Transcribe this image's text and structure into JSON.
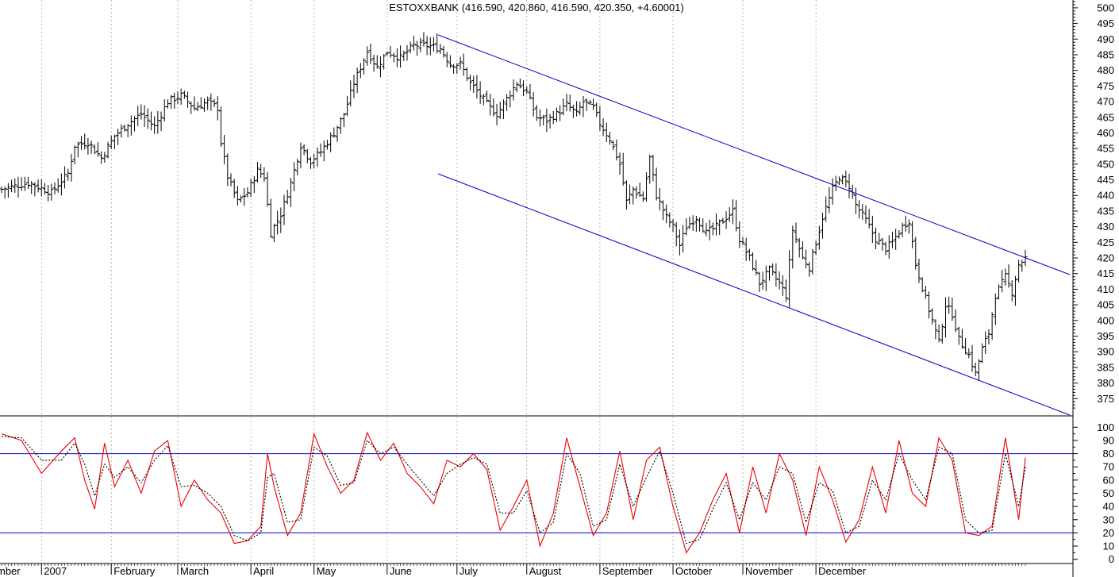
{
  "chart_data": [
    {
      "type": "ohlc",
      "title": "ESTOXXBANK (416.590, 420.860, 416.590, 420.350, +4.60001)",
      "ylim": [
        370,
        502
      ],
      "y_ticks": [
        375,
        380,
        385,
        390,
        395,
        400,
        405,
        410,
        415,
        420,
        425,
        430,
        435,
        440,
        445,
        450,
        455,
        460,
        465,
        470,
        475,
        480,
        485,
        490,
        495,
        500
      ],
      "x_labels": [
        "mber",
        "2007",
        "February",
        "March",
        "April",
        "May",
        "June",
        "July",
        "August",
        "September",
        "October",
        "November",
        "December"
      ],
      "grid": "vertical dotted at month starts",
      "anchors": [
        [
          0,
          442
        ],
        [
          8,
          444
        ],
        [
          15,
          441
        ],
        [
          20,
          447
        ],
        [
          22,
          456
        ],
        [
          26,
          457
        ],
        [
          30,
          452
        ],
        [
          34,
          459
        ],
        [
          38,
          463
        ],
        [
          42,
          466
        ],
        [
          46,
          462
        ],
        [
          50,
          470
        ],
        [
          54,
          472
        ],
        [
          58,
          468
        ],
        [
          62,
          470
        ],
        [
          65,
          468
        ],
        [
          66,
          457
        ],
        [
          68,
          446
        ],
        [
          71,
          438
        ],
        [
          74,
          441
        ],
        [
          77,
          448
        ],
        [
          79,
          446
        ],
        [
          81,
          428
        ],
        [
          84,
          434
        ],
        [
          87,
          444
        ],
        [
          90,
          456
        ],
        [
          93,
          451
        ],
        [
          96,
          454
        ],
        [
          100,
          460
        ],
        [
          103,
          466
        ],
        [
          106,
          476
        ],
        [
          110,
          486
        ],
        [
          113,
          481
        ],
        [
          116,
          486
        ],
        [
          120,
          484
        ],
        [
          124,
          488
        ],
        [
          128,
          488
        ],
        [
          132,
          487
        ],
        [
          135,
          482
        ],
        [
          138,
          482
        ],
        [
          141,
          476
        ],
        [
          144,
          472
        ],
        [
          147,
          468
        ],
        [
          149,
          466
        ],
        [
          152,
          471
        ],
        [
          155,
          476
        ],
        [
          158,
          473
        ],
        [
          161,
          465
        ],
        [
          164,
          464
        ],
        [
          167,
          466
        ],
        [
          170,
          469
        ],
        [
          173,
          466
        ],
        [
          175,
          470
        ],
        [
          178,
          468
        ],
        [
          180,
          463
        ],
        [
          183,
          458
        ],
        [
          186,
          450
        ],
        [
          188,
          438
        ],
        [
          190,
          442
        ],
        [
          193,
          439
        ],
        [
          195,
          452
        ],
        [
          197,
          440
        ],
        [
          200,
          433
        ],
        [
          202,
          430
        ],
        [
          204,
          424
        ],
        [
          206,
          430
        ],
        [
          209,
          433
        ],
        [
          212,
          428
        ],
        [
          215,
          430
        ],
        [
          218,
          433
        ],
        [
          220,
          435
        ],
        [
          222,
          426
        ],
        [
          225,
          420
        ],
        [
          228,
          412
        ],
        [
          231,
          416
        ],
        [
          234,
          412
        ],
        [
          236,
          408
        ],
        [
          238,
          429
        ],
        [
          241,
          420
        ],
        [
          243,
          417
        ],
        [
          245,
          425
        ],
        [
          247,
          433
        ],
        [
          250,
          442
        ],
        [
          252,
          446
        ],
        [
          255,
          443
        ],
        [
          257,
          437
        ],
        [
          260,
          432
        ],
        [
          263,
          426
        ],
        [
          266,
          423
        ],
        [
          268,
          425
        ],
        [
          271,
          430
        ],
        [
          273,
          432
        ],
        [
          275,
          418
        ],
        [
          278,
          407
        ],
        [
          280,
          400
        ],
        [
          282,
          393
        ],
        [
          284,
          405
        ],
        [
          286,
          402
        ],
        [
          288,
          394
        ],
        [
          291,
          389
        ],
        [
          293,
          383
        ],
        [
          295,
          391
        ],
        [
          297,
          396
        ],
        [
          299,
          408
        ],
        [
          302,
          414
        ],
        [
          304,
          409
        ],
        [
          306,
          418
        ],
        [
          308,
          420
        ]
      ]
    },
    {
      "type": "line",
      "title": "",
      "ylim": [
        -2,
        105
      ],
      "y_ticks": [
        0,
        10,
        20,
        30,
        40,
        50,
        60,
        70,
        80,
        90,
        100
      ],
      "reference_levels": [
        80,
        20
      ],
      "series": [
        {
          "name": "",
          "color": "#ee0000",
          "style": "solid",
          "x": [
            0,
            6,
            12,
            18,
            22,
            25,
            28,
            31,
            34,
            38,
            42,
            46,
            50,
            54,
            58,
            62,
            66,
            70,
            74,
            78,
            80,
            82,
            86,
            90,
            94,
            98,
            102,
            106,
            110,
            114,
            118,
            122,
            126,
            130,
            134,
            138,
            142,
            146,
            150,
            154,
            158,
            162,
            166,
            170,
            174,
            178,
            182,
            186,
            190,
            194,
            198,
            202,
            206,
            210,
            214,
            218,
            222,
            226,
            230,
            234,
            238,
            242,
            246,
            250,
            254,
            258,
            262,
            266,
            270,
            274,
            278,
            282,
            286,
            290,
            294,
            298,
            302,
            306,
            308
          ],
          "values": [
            95,
            90,
            65,
            82,
            92,
            60,
            38,
            88,
            55,
            75,
            50,
            82,
            90,
            40,
            60,
            45,
            35,
            12,
            14,
            25,
            80,
            55,
            18,
            35,
            95,
            70,
            50,
            60,
            96,
            75,
            88,
            65,
            55,
            42,
            75,
            70,
            80,
            68,
            22,
            40,
            60,
            10,
            35,
            92,
            55,
            18,
            35,
            82,
            30,
            75,
            85,
            40,
            5,
            20,
            45,
            65,
            20,
            70,
            35,
            80,
            60,
            18,
            70,
            45,
            13,
            30,
            70,
            35,
            90,
            50,
            40,
            92,
            75,
            20,
            18,
            25,
            92,
            30,
            77
          ]
        },
        {
          "name": "",
          "color": "#000000",
          "style": "dotted",
          "x": [
            0,
            6,
            12,
            18,
            22,
            25,
            28,
            31,
            34,
            38,
            42,
            46,
            50,
            54,
            58,
            62,
            66,
            70,
            74,
            78,
            80,
            82,
            86,
            90,
            94,
            98,
            102,
            106,
            110,
            114,
            118,
            122,
            126,
            130,
            134,
            138,
            142,
            146,
            150,
            154,
            158,
            162,
            166,
            170,
            174,
            178,
            182,
            186,
            190,
            194,
            198,
            202,
            206,
            210,
            214,
            218,
            222,
            226,
            230,
            234,
            238,
            242,
            246,
            250,
            254,
            258,
            262,
            266,
            270,
            274,
            278,
            282,
            286,
            290,
            294,
            298,
            302,
            306,
            308
          ],
          "values": [
            93,
            92,
            75,
            75,
            88,
            72,
            48,
            72,
            62,
            70,
            58,
            75,
            86,
            55,
            56,
            50,
            40,
            18,
            14,
            20,
            62,
            65,
            28,
            30,
            85,
            78,
            56,
            58,
            90,
            80,
            85,
            72,
            60,
            48,
            65,
            72,
            77,
            72,
            35,
            35,
            52,
            20,
            28,
            80,
            65,
            25,
            30,
            72,
            40,
            62,
            82,
            50,
            12,
            15,
            38,
            58,
            30,
            58,
            45,
            70,
            65,
            28,
            58,
            52,
            20,
            25,
            60,
            45,
            80,
            60,
            45,
            85,
            80,
            30,
            20,
            22,
            80,
            40,
            70
          ]
        }
      ]
    }
  ]
}
